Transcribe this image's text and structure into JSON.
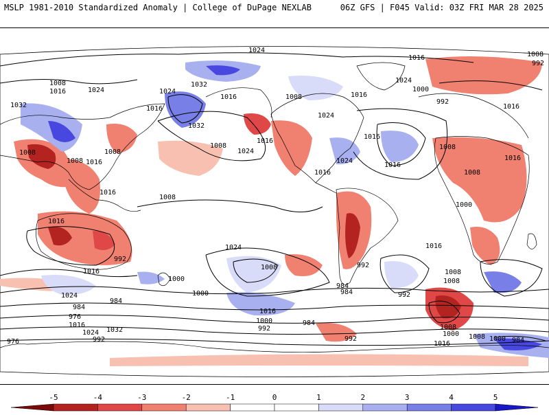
{
  "header": {
    "left": "MSLP 1981-2010 Standardized Anomaly | College of DuPage NEXLAB",
    "right": "06Z GFS | F045 Valid: 03Z FRI MAR 28 2025"
  },
  "map": {
    "projection": "Robinson (Pacific-centered)",
    "isobar_labels": [
      "1024",
      "1008",
      "992",
      "1016",
      "1032",
      "1008",
      "1016",
      "1024",
      "1000",
      "992",
      "1016",
      "1024",
      "1016",
      "1032",
      "1032",
      "1016",
      "1024",
      "1016",
      "1008",
      "1024",
      "1016",
      "1008",
      "1024",
      "1016",
      "1008",
      "1008",
      "1008",
      "1016",
      "1008",
      "1016",
      "1016",
      "1024",
      "1008",
      "1016",
      "1016",
      "1008",
      "1016",
      "1000",
      "992",
      "1024",
      "1016",
      "1016",
      "1008",
      "1000",
      "992",
      "984",
      "984",
      "1000",
      "1024",
      "992",
      "1008",
      "1008",
      "1016",
      "984",
      "1000",
      "992",
      "984",
      "984",
      "976",
      "1016",
      "1024",
      "1032",
      "976",
      "992",
      "1008",
      "1000",
      "984",
      "992",
      "1008",
      "1000",
      "1016"
    ],
    "anomaly_colors": {
      "neg5": "#7a0a0a",
      "neg4": "#b3231f",
      "neg3": "#e04848",
      "neg2": "#f08070",
      "neg1": "#f8c0b0",
      "pos1": "#d8dcf8",
      "pos2": "#a8b0f0",
      "pos3": "#7880e8",
      "pos4": "#4848e0",
      "pos5": "#1818c8",
      "isobar": "#000000",
      "coast": "#000000"
    }
  },
  "colorbar": {
    "ticks": [
      "-5",
      "-4",
      "-3",
      "-2",
      "-1",
      "0",
      "1",
      "2",
      "3",
      "4",
      "5"
    ],
    "colors": [
      "#7a0a0a",
      "#b3231f",
      "#e04848",
      "#f08070",
      "#f8c0b0",
      "#ffffff",
      "#ffffff",
      "#d8dcf8",
      "#a8b0f0",
      "#7880e8",
      "#4848e0",
      "#1818c8"
    ]
  }
}
